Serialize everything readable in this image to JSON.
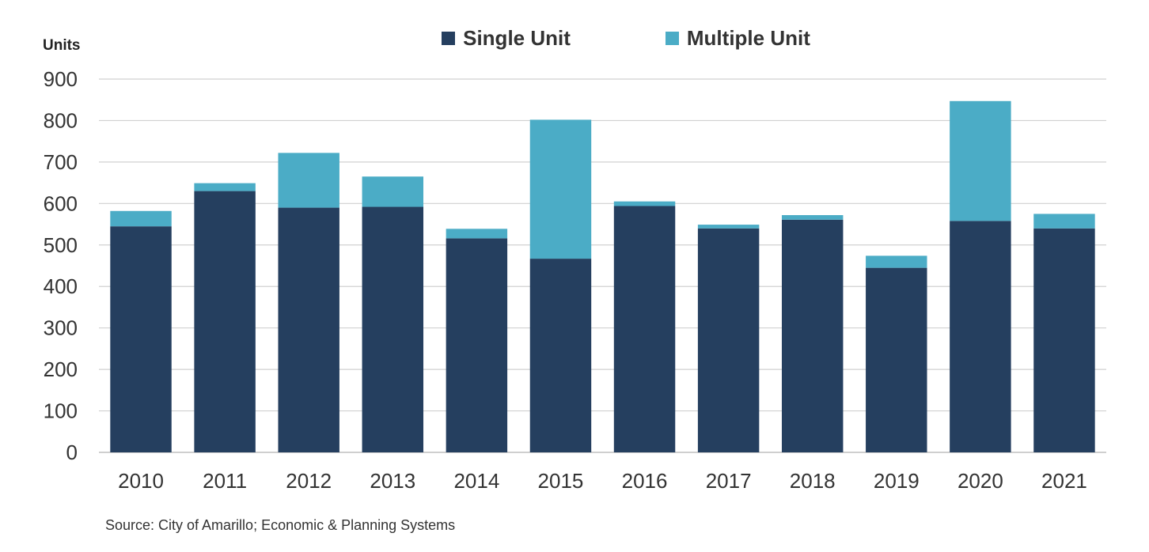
{
  "chart_data": {
    "type": "bar",
    "stacked": true,
    "categories": [
      "2010",
      "2011",
      "2012",
      "2013",
      "2014",
      "2015",
      "2016",
      "2017",
      "2018",
      "2019",
      "2020",
      "2021"
    ],
    "series": [
      {
        "name": "Single Unit",
        "color": "#253f5f",
        "values": [
          545,
          630,
          590,
          592,
          516,
          467,
          594,
          540,
          561,
          445,
          558,
          540
        ]
      },
      {
        "name": "Multiple Unit",
        "color": "#4bacc6",
        "values": [
          37,
          19,
          132,
          73,
          23,
          335,
          11,
          9,
          11,
          29,
          289,
          35
        ]
      }
    ],
    "ylabel": "Units",
    "ylim": [
      0,
      900
    ],
    "yticks": [
      0,
      100,
      200,
      300,
      400,
      500,
      600,
      700,
      800,
      900
    ],
    "grid": true,
    "legend_position": "top-center",
    "source": "Source: City of Amarillo; Economic & Planning Systems"
  }
}
